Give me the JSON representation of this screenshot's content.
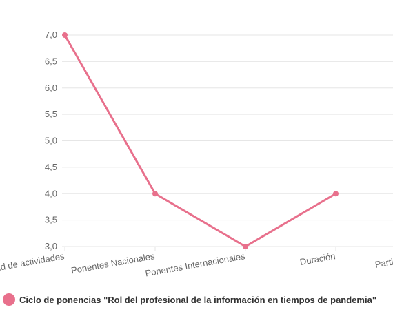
{
  "chart_data": {
    "type": "line",
    "categories": [
      "Variedad de actividades",
      "Ponentes Nacionales",
      "Ponentes Internacionales",
      "Duración",
      "Participación"
    ],
    "series": [
      {
        "name": "Ciclo de ponencias \"Rol del profesional de la información en tiempos de pandemia\"",
        "values": [
          7.0,
          4.0,
          3.0,
          4.0,
          null
        ],
        "color": "#e8708c"
      }
    ],
    "yticks": [
      "7,0",
      "6,5",
      "6,0",
      "5,5",
      "5,0",
      "4,5",
      "4,0",
      "3,5",
      "3,0"
    ],
    "ylim": [
      3.0,
      7.0
    ],
    "grid": true,
    "legend_position": "bottom-left"
  }
}
